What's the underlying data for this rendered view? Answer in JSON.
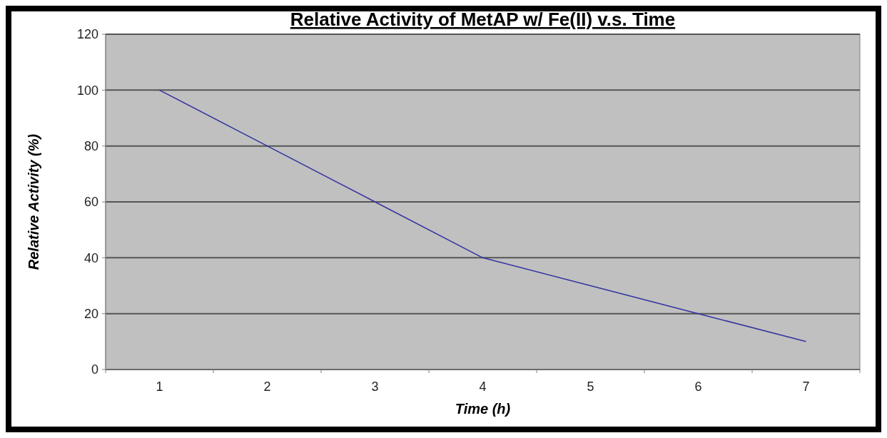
{
  "chart_data": {
    "type": "line",
    "title": "Relative Activity of MetAP w/ Fe(II) v.s. Time",
    "xlabel": "Time (h)",
    "ylabel": "Relative Activity (%)",
    "categories": [
      "1",
      "2",
      "3",
      "4",
      "5",
      "6",
      "7"
    ],
    "series": [
      {
        "color": "#3333a0",
        "values": [
          100,
          80,
          60,
          40,
          30,
          20,
          10
        ]
      }
    ],
    "ylim": [
      0,
      120
    ],
    "yticks": [
      0,
      20,
      40,
      60,
      80,
      100,
      120
    ],
    "grid": "y",
    "marker": "none",
    "line_style": "solid"
  }
}
